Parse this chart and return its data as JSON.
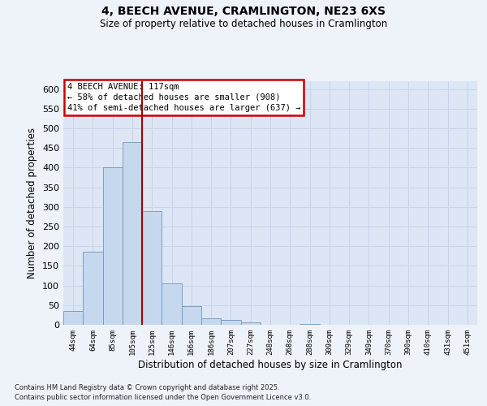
{
  "title1": "4, BEECH AVENUE, CRAMLINGTON, NE23 6XS",
  "title2": "Size of property relative to detached houses in Cramlington",
  "xlabel": "Distribution of detached houses by size in Cramlington",
  "ylabel": "Number of detached properties",
  "bar_labels": [
    "44sqm",
    "64sqm",
    "85sqm",
    "105sqm",
    "125sqm",
    "146sqm",
    "166sqm",
    "186sqm",
    "207sqm",
    "227sqm",
    "248sqm",
    "268sqm",
    "288sqm",
    "309sqm",
    "329sqm",
    "349sqm",
    "370sqm",
    "390sqm",
    "410sqm",
    "431sqm",
    "451sqm"
  ],
  "bar_values": [
    35,
    185,
    400,
    465,
    290,
    105,
    48,
    17,
    12,
    6,
    1,
    0,
    2,
    0,
    1,
    0,
    0,
    1,
    0,
    0,
    1
  ],
  "bar_color": "#c5d8ee",
  "bar_edge_color": "#7096b8",
  "grid_color": "#c8d4e8",
  "background_color": "#dce6f5",
  "fig_background": "#eef2f9",
  "vline_color": "#aa0000",
  "vline_index": 3,
  "annotation_text": "4 BEECH AVENUE: 117sqm\n← 58% of detached houses are smaller (908)\n41% of semi-detached houses are larger (637) →",
  "annotation_box_facecolor": "#ffffff",
  "annotation_box_edgecolor": "#cc0000",
  "ylim": [
    0,
    620
  ],
  "yticks": [
    0,
    50,
    100,
    150,
    200,
    250,
    300,
    350,
    400,
    450,
    500,
    550,
    600
  ],
  "footnote1": "Contains HM Land Registry data © Crown copyright and database right 2025.",
  "footnote2": "Contains public sector information licensed under the Open Government Licence v3.0."
}
